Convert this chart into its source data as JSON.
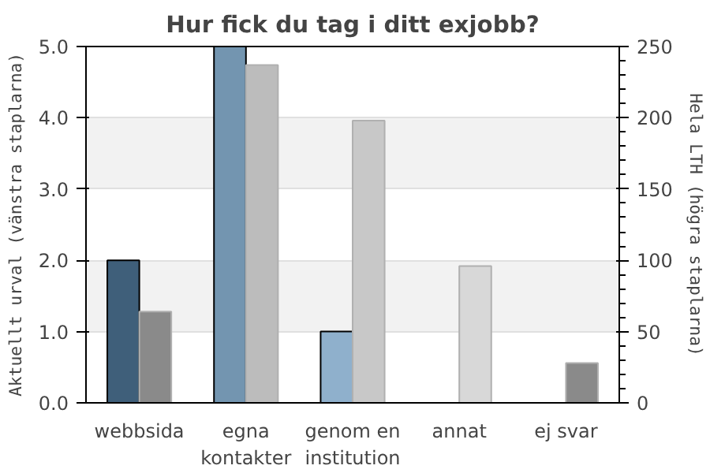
{
  "chart_data": {
    "type": "bar",
    "title": "Hur fick du tag i ditt exjobb?",
    "ylabel": "Aktuellt urval (vänstra staplarna)",
    "y2label": "Hela LTH (högra staplarna)",
    "categories": [
      "webbsida",
      "egna kontakter",
      "genom en institution",
      "annat",
      "ej svar"
    ],
    "series": [
      {
        "colors": [
          "#3f5f7a",
          "#7395b0",
          "#8fb0cc",
          null,
          null
        ],
        "values": [
          2,
          5,
          1,
          null,
          null
        ]
      },
      {
        "colors": [
          "#8a8a8a",
          "#bcbcbc",
          "#c8c8c8",
          "#d8d8d8",
          "#8a8a8a"
        ],
        "values": [
          64,
          237,
          198,
          96,
          28
        ],
        "axis": "y2"
      }
    ],
    "ylim": [
      0,
      5
    ],
    "yticks": [
      {
        "value": 0,
        "label": "0.0"
      },
      {
        "value": 1,
        "label": "1.0"
      },
      {
        "value": 2,
        "label": "2.0"
      },
      {
        "value": 3,
        "label": "3.0"
      },
      {
        "value": 4,
        "label": "4.0"
      },
      {
        "value": 5,
        "label": "5.0"
      }
    ],
    "y2lim": [
      0,
      250
    ],
    "y2ticks": [
      0,
      50,
      100,
      150,
      200,
      250
    ],
    "grid": "y"
  }
}
